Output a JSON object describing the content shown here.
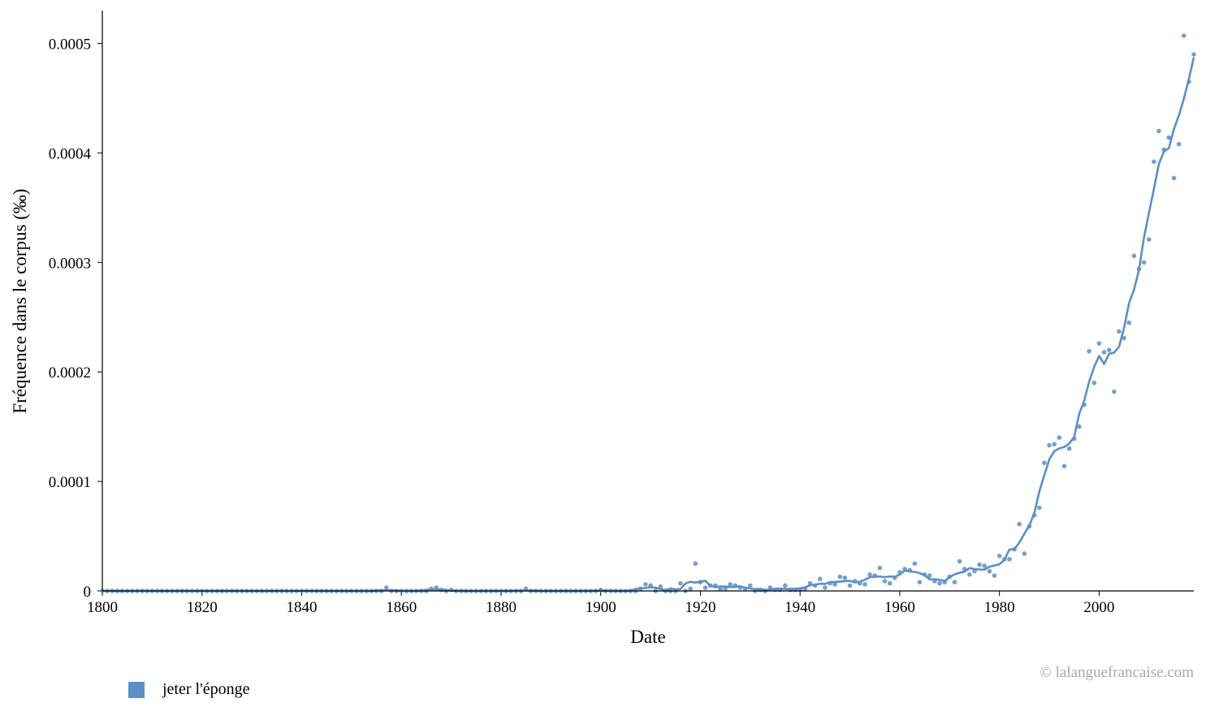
{
  "colors": {
    "series": "#5b8fc7",
    "axis": "#000000",
    "watermark": "#a8a8a8"
  },
  "watermark": "© lalanguefrancaise.com",
  "legend": {
    "label": "jeter l'éponge"
  },
  "chart_data": {
    "type": "line",
    "title": "",
    "xlabel": "Date",
    "ylabel": "Fréquence dans le corpus (‰)",
    "xlim": [
      1800,
      2019
    ],
    "ylim": [
      0,
      0.00053
    ],
    "x_ticks": [
      1800,
      1820,
      1840,
      1860,
      1880,
      1900,
      1920,
      1940,
      1960,
      1980,
      2000
    ],
    "y_ticks": [
      0,
      0.0001,
      0.0002,
      0.0003,
      0.0004,
      0.0005
    ],
    "y_tick_labels": [
      "0",
      "0.0001",
      "0.0002",
      "0.0003",
      "0.0004",
      "0.0005"
    ],
    "grid": false,
    "legend_position": "bottom-left",
    "series": [
      {
        "name": "jeter l'éponge",
        "style": "scatter+smoothed-line",
        "points": [
          [
            1800,
            0
          ],
          [
            1801,
            0
          ],
          [
            1802,
            0
          ],
          [
            1803,
            0
          ],
          [
            1804,
            0
          ],
          [
            1805,
            0
          ],
          [
            1806,
            0
          ],
          [
            1807,
            0
          ],
          [
            1808,
            0
          ],
          [
            1809,
            0
          ],
          [
            1810,
            0
          ],
          [
            1811,
            0
          ],
          [
            1812,
            0
          ],
          [
            1813,
            0
          ],
          [
            1814,
            0
          ],
          [
            1815,
            0
          ],
          [
            1816,
            0
          ],
          [
            1817,
            0
          ],
          [
            1818,
            0
          ],
          [
            1819,
            0
          ],
          [
            1820,
            0
          ],
          [
            1821,
            0
          ],
          [
            1822,
            0
          ],
          [
            1823,
            0
          ],
          [
            1824,
            0
          ],
          [
            1825,
            0
          ],
          [
            1826,
            0
          ],
          [
            1827,
            0
          ],
          [
            1828,
            0
          ],
          [
            1829,
            0
          ],
          [
            1830,
            0
          ],
          [
            1831,
            0
          ],
          [
            1832,
            0
          ],
          [
            1833,
            0
          ],
          [
            1834,
            0
          ],
          [
            1835,
            0
          ],
          [
            1836,
            0
          ],
          [
            1837,
            0
          ],
          [
            1838,
            0
          ],
          [
            1839,
            0
          ],
          [
            1840,
            0
          ],
          [
            1841,
            0
          ],
          [
            1842,
            0
          ],
          [
            1843,
            0
          ],
          [
            1844,
            0
          ],
          [
            1845,
            0
          ],
          [
            1846,
            0
          ],
          [
            1847,
            0
          ],
          [
            1848,
            0
          ],
          [
            1849,
            0
          ],
          [
            1850,
            0
          ],
          [
            1851,
            0
          ],
          [
            1852,
            0
          ],
          [
            1853,
            0
          ],
          [
            1854,
            0
          ],
          [
            1855,
            0
          ],
          [
            1856,
            0
          ],
          [
            1857,
            3e-06
          ],
          [
            1858,
            0
          ],
          [
            1859,
            0
          ],
          [
            1860,
            0
          ],
          [
            1861,
            0
          ],
          [
            1862,
            0
          ],
          [
            1863,
            0
          ],
          [
            1864,
            0
          ],
          [
            1865,
            0
          ],
          [
            1866,
            2e-06
          ],
          [
            1867,
            3e-06
          ],
          [
            1868,
            1e-06
          ],
          [
            1869,
            0
          ],
          [
            1870,
            1e-06
          ],
          [
            1871,
            0
          ],
          [
            1872,
            0
          ],
          [
            1873,
            0
          ],
          [
            1874,
            0
          ],
          [
            1875,
            0
          ],
          [
            1876,
            0
          ],
          [
            1877,
            0
          ],
          [
            1878,
            0
          ],
          [
            1879,
            0
          ],
          [
            1880,
            0
          ],
          [
            1881,
            0
          ],
          [
            1882,
            0
          ],
          [
            1883,
            0
          ],
          [
            1884,
            0
          ],
          [
            1885,
            2e-06
          ],
          [
            1886,
            0
          ],
          [
            1887,
            0
          ],
          [
            1888,
            0
          ],
          [
            1889,
            0
          ],
          [
            1890,
            0
          ],
          [
            1891,
            0
          ],
          [
            1892,
            0
          ],
          [
            1893,
            0
          ],
          [
            1894,
            0
          ],
          [
            1895,
            0
          ],
          [
            1896,
            0
          ],
          [
            1897,
            0
          ],
          [
            1898,
            0
          ],
          [
            1899,
            0
          ],
          [
            1900,
            1e-06
          ],
          [
            1901,
            0
          ],
          [
            1902,
            0
          ],
          [
            1903,
            0
          ],
          [
            1904,
            0
          ],
          [
            1905,
            0
          ],
          [
            1906,
            0
          ],
          [
            1907,
            0
          ],
          [
            1908,
            2e-06
          ],
          [
            1909,
            6e-06
          ],
          [
            1910,
            5e-06
          ],
          [
            1911,
            0
          ],
          [
            1912,
            4e-06
          ],
          [
            1913,
            0
          ],
          [
            1914,
            0
          ],
          [
            1915,
            0
          ],
          [
            1916,
            7e-06
          ],
          [
            1917,
            0
          ],
          [
            1918,
            2e-06
          ],
          [
            1919,
            2.5e-05
          ],
          [
            1920,
            8e-06
          ],
          [
            1921,
            3e-06
          ],
          [
            1922,
            5e-06
          ],
          [
            1923,
            5e-06
          ],
          [
            1924,
            2e-06
          ],
          [
            1925,
            2e-06
          ],
          [
            1926,
            6e-06
          ],
          [
            1927,
            5e-06
          ],
          [
            1928,
            3e-06
          ],
          [
            1929,
            2e-06
          ],
          [
            1930,
            5e-06
          ],
          [
            1931,
            0
          ],
          [
            1932,
            1e-06
          ],
          [
            1933,
            0
          ],
          [
            1934,
            3e-06
          ],
          [
            1935,
            1e-06
          ],
          [
            1936,
            1e-06
          ],
          [
            1937,
            5e-06
          ],
          [
            1938,
            1e-06
          ],
          [
            1939,
            1e-06
          ],
          [
            1940,
            1e-06
          ],
          [
            1941,
            2e-06
          ],
          [
            1942,
            7e-06
          ],
          [
            1943,
            5e-06
          ],
          [
            1944,
            1.1e-05
          ],
          [
            1945,
            3e-06
          ],
          [
            1946,
            7e-06
          ],
          [
            1947,
            6e-06
          ],
          [
            1948,
            1.3e-05
          ],
          [
            1949,
            1.2e-05
          ],
          [
            1950,
            5e-06
          ],
          [
            1951,
            9e-06
          ],
          [
            1952,
            7e-06
          ],
          [
            1953,
            6e-06
          ],
          [
            1954,
            1.5e-05
          ],
          [
            1955,
            1.4e-05
          ],
          [
            1956,
            2.1e-05
          ],
          [
            1957,
            9e-06
          ],
          [
            1958,
            7e-06
          ],
          [
            1959,
            1.2e-05
          ],
          [
            1960,
            1.7e-05
          ],
          [
            1961,
            2e-05
          ],
          [
            1962,
            1.9e-05
          ],
          [
            1963,
            2.5e-05
          ],
          [
            1964,
            8e-06
          ],
          [
            1965,
            1.5e-05
          ],
          [
            1966,
            1.4e-05
          ],
          [
            1967,
            9e-06
          ],
          [
            1968,
            7e-06
          ],
          [
            1969,
            8e-06
          ],
          [
            1970,
            1.3e-05
          ],
          [
            1971,
            8e-06
          ],
          [
            1972,
            2.7e-05
          ],
          [
            1973,
            2e-05
          ],
          [
            1974,
            1.5e-05
          ],
          [
            1975,
            1.8e-05
          ],
          [
            1976,
            2.4e-05
          ],
          [
            1977,
            2.3e-05
          ],
          [
            1978,
            1.8e-05
          ],
          [
            1979,
            1.4e-05
          ],
          [
            1980,
            3.2e-05
          ],
          [
            1981,
            2.9e-05
          ],
          [
            1982,
            2.9e-05
          ],
          [
            1983,
            3.8e-05
          ],
          [
            1984,
            6.1e-05
          ],
          [
            1985,
            3.4e-05
          ],
          [
            1986,
            5.9e-05
          ],
          [
            1987,
            6.9e-05
          ],
          [
            1988,
            7.6e-05
          ],
          [
            1989,
            0.000117
          ],
          [
            1990,
            0.000133
          ],
          [
            1991,
            0.000134
          ],
          [
            1992,
            0.00014
          ],
          [
            1993,
            0.000114
          ],
          [
            1994,
            0.00013
          ],
          [
            1995,
            0.000139
          ],
          [
            1996,
            0.00015
          ],
          [
            1997,
            0.00017
          ],
          [
            1998,
            0.000219
          ],
          [
            1999,
            0.00019
          ],
          [
            2000,
            0.000226
          ],
          [
            2001,
            0.000218
          ],
          [
            2002,
            0.00022
          ],
          [
            2003,
            0.000182
          ],
          [
            2004,
            0.000237
          ],
          [
            2005,
            0.000231
          ],
          [
            2006,
            0.000245
          ],
          [
            2007,
            0.000306
          ],
          [
            2008,
            0.000294
          ],
          [
            2009,
            0.0003
          ],
          [
            2010,
            0.000321
          ],
          [
            2011,
            0.000392
          ],
          [
            2012,
            0.00042
          ],
          [
            2013,
            0.000403
          ],
          [
            2014,
            0.000414
          ],
          [
            2015,
            0.000377
          ],
          [
            2016,
            0.000408
          ],
          [
            2017,
            0.000507
          ],
          [
            2018,
            0.000465
          ],
          [
            2019,
            0.00049
          ]
        ]
      }
    ]
  }
}
